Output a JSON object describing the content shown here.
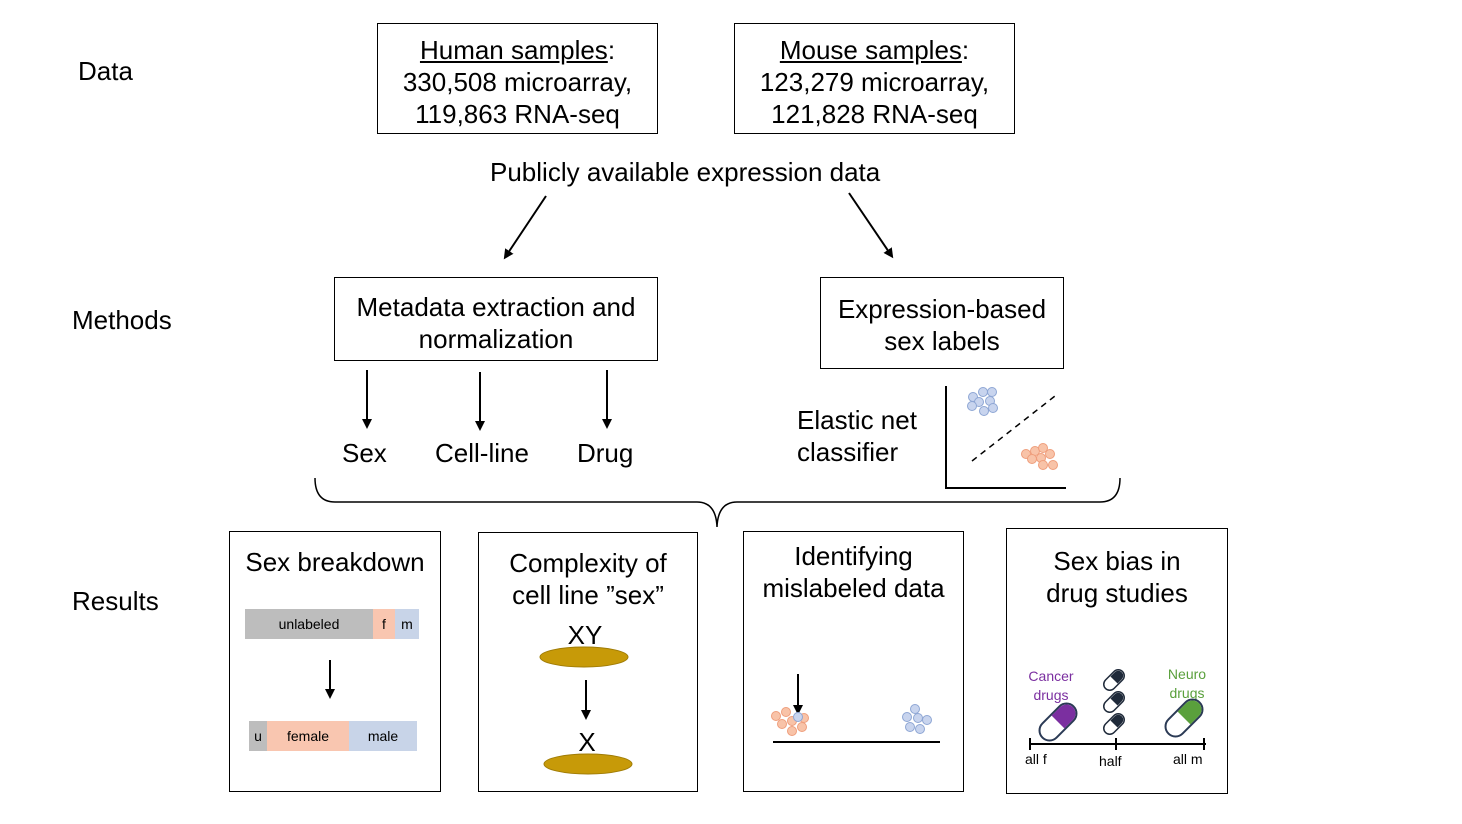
{
  "rows": {
    "data": "Data",
    "methods": "Methods",
    "results": "Results"
  },
  "data_boxes": {
    "human": {
      "title": "Human samples",
      "colon": ":",
      "line1": "330,508 microarray,",
      "line2": "119,863 RNA-seq"
    },
    "mouse": {
      "title": "Mouse samples",
      "colon": ":",
      "line1": "123,279 microarray,",
      "line2": "121,828 RNA-seq"
    },
    "caption": "Publicly available expression data"
  },
  "methods": {
    "metadata_box": {
      "line1": "Metadata extraction and",
      "line2": "normalization"
    },
    "expression_box": {
      "line1": "Expression-based",
      "line2": "sex labels"
    },
    "outputs": [
      "Sex",
      "Cell-line",
      "Drug"
    ],
    "classifier": {
      "line1": "Elastic net",
      "line2": "classifier"
    }
  },
  "results": {
    "sex_breakdown": {
      "title": "Sex breakdown",
      "before": {
        "unlabeled": "unlabeled",
        "f": "f",
        "m": "m"
      },
      "after": {
        "u": "u",
        "female": "female",
        "male": "male"
      }
    },
    "cell_line": {
      "line1": "Complexity of",
      "line2": "cell line ”sex”",
      "top": "XY",
      "bottom": "X"
    },
    "mislabeled": {
      "line1": "Identifying",
      "line2": "mislabeled data"
    },
    "drug_bias": {
      "line1": "Sex bias in",
      "line2": "drug studies",
      "cancer": {
        "line1": "Cancer",
        "line2": "drugs"
      },
      "neuro": {
        "line1": "Neuro",
        "line2": "drugs"
      },
      "axis": {
        "left": "all f",
        "mid": "half",
        "right": "all m"
      }
    }
  },
  "colors": {
    "female": "#f9c6b0",
    "male": "#c8d4e8",
    "unlabeled": "#bdbdbd",
    "female_dot": "#f6b89a",
    "male_dot": "#b4c6e4",
    "ellipse": "#c79a08",
    "cancer": "#7b2fa0",
    "neuro": "#5aa03c",
    "pill_dark": "#1f2a3a"
  }
}
